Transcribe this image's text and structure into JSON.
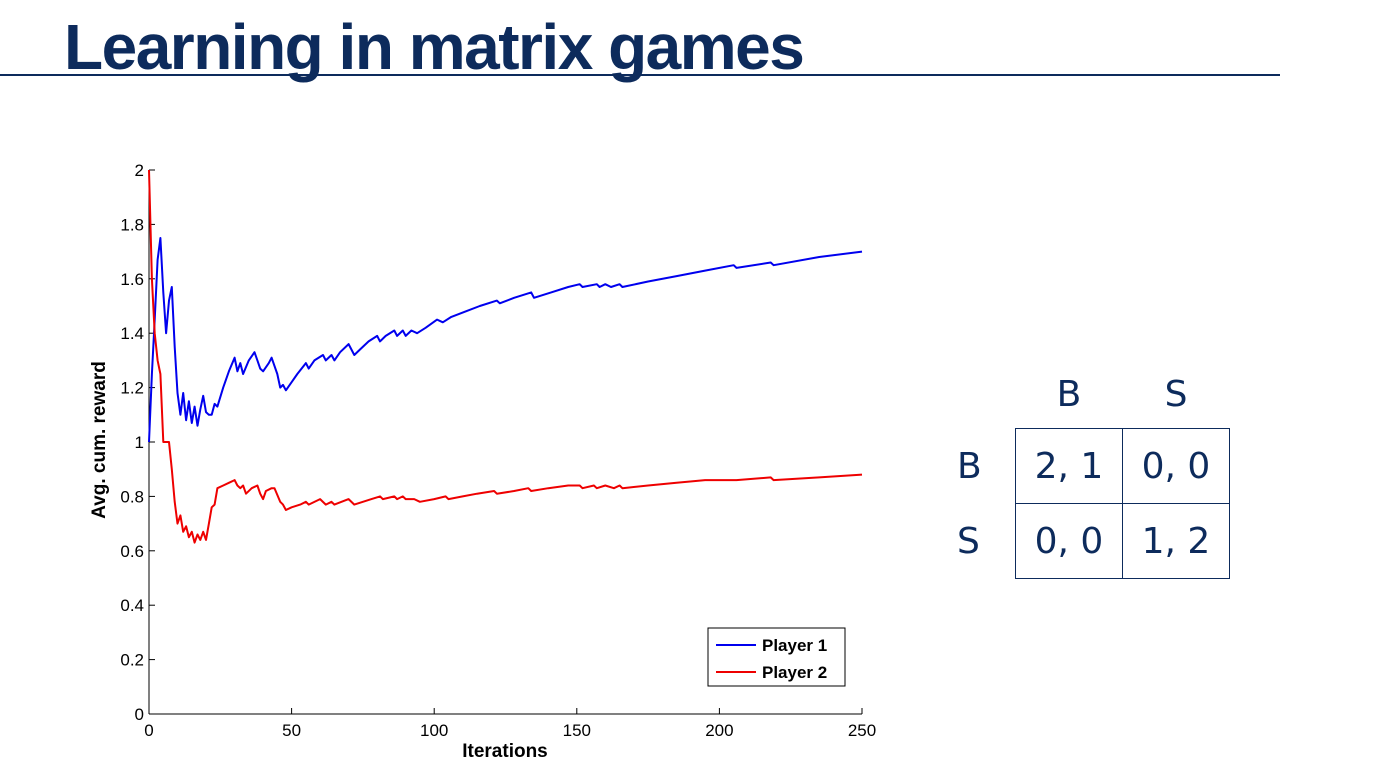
{
  "slide": {
    "title": "Learning in matrix games"
  },
  "chart_data": {
    "type": "line",
    "xlabel": "Iterations",
    "ylabel": "Avg. cum. reward",
    "xlim": [
      0,
      250
    ],
    "ylim": [
      0,
      2
    ],
    "xticks": [
      0,
      50,
      100,
      150,
      200,
      250
    ],
    "yticks": [
      0,
      0.2,
      0.4,
      0.6,
      0.8,
      1,
      1.2,
      1.4,
      1.6,
      1.8,
      2
    ],
    "ytick_labels": [
      "0",
      "0.2",
      "0.4",
      "0.6",
      "0.8",
      "1",
      "1.2",
      "1.4",
      "1.6",
      "1.8",
      "2"
    ],
    "grid": false,
    "legend_position": "bottom-right",
    "series": [
      {
        "name": "Player 1",
        "color": "#0000ee",
        "points": [
          [
            0,
            1.0
          ],
          [
            1,
            1.25
          ],
          [
            2,
            1.45
          ],
          [
            3,
            1.67
          ],
          [
            4,
            1.75
          ],
          [
            5,
            1.55
          ],
          [
            6,
            1.4
          ],
          [
            7,
            1.52
          ],
          [
            8,
            1.57
          ],
          [
            9,
            1.35
          ],
          [
            10,
            1.18
          ],
          [
            11,
            1.1
          ],
          [
            12,
            1.18
          ],
          [
            13,
            1.08
          ],
          [
            14,
            1.15
          ],
          [
            15,
            1.07
          ],
          [
            16,
            1.13
          ],
          [
            17,
            1.06
          ],
          [
            18,
            1.12
          ],
          [
            19,
            1.17
          ],
          [
            20,
            1.11
          ],
          [
            21,
            1.1
          ],
          [
            22,
            1.1
          ],
          [
            23,
            1.14
          ],
          [
            24,
            1.13
          ],
          [
            26,
            1.2
          ],
          [
            28,
            1.26
          ],
          [
            30,
            1.31
          ],
          [
            31,
            1.26
          ],
          [
            32,
            1.29
          ],
          [
            33,
            1.25
          ],
          [
            35,
            1.3
          ],
          [
            37,
            1.33
          ],
          [
            38,
            1.3
          ],
          [
            39,
            1.27
          ],
          [
            40,
            1.26
          ],
          [
            42,
            1.29
          ],
          [
            43,
            1.31
          ],
          [
            45,
            1.25
          ],
          [
            46,
            1.2
          ],
          [
            47,
            1.21
          ],
          [
            48,
            1.19
          ],
          [
            50,
            1.22
          ],
          [
            52,
            1.25
          ],
          [
            55,
            1.29
          ],
          [
            56,
            1.27
          ],
          [
            58,
            1.3
          ],
          [
            61,
            1.32
          ],
          [
            62,
            1.3
          ],
          [
            64,
            1.32
          ],
          [
            65,
            1.3
          ],
          [
            67,
            1.33
          ],
          [
            70,
            1.36
          ],
          [
            72,
            1.32
          ],
          [
            74,
            1.34
          ],
          [
            77,
            1.37
          ],
          [
            80,
            1.39
          ],
          [
            81,
            1.37
          ],
          [
            83,
            1.39
          ],
          [
            86,
            1.41
          ],
          [
            87,
            1.39
          ],
          [
            89,
            1.41
          ],
          [
            90,
            1.39
          ],
          [
            92,
            1.41
          ],
          [
            94,
            1.4
          ],
          [
            97,
            1.42
          ],
          [
            101,
            1.45
          ],
          [
            103,
            1.44
          ],
          [
            106,
            1.46
          ],
          [
            111,
            1.48
          ],
          [
            116,
            1.5
          ],
          [
            122,
            1.52
          ],
          [
            123,
            1.51
          ],
          [
            128,
            1.53
          ],
          [
            134,
            1.55
          ],
          [
            135,
            1.53
          ],
          [
            141,
            1.55
          ],
          [
            147,
            1.57
          ],
          [
            151,
            1.58
          ],
          [
            152,
            1.57
          ],
          [
            157,
            1.58
          ],
          [
            158,
            1.57
          ],
          [
            160,
            1.58
          ],
          [
            162,
            1.57
          ],
          [
            165,
            1.58
          ],
          [
            166,
            1.57
          ],
          [
            175,
            1.59
          ],
          [
            185,
            1.61
          ],
          [
            195,
            1.63
          ],
          [
            205,
            1.65
          ],
          [
            206,
            1.64
          ],
          [
            218,
            1.66
          ],
          [
            219,
            1.65
          ],
          [
            235,
            1.68
          ],
          [
            250,
            1.7
          ]
        ]
      },
      {
        "name": "Player 2",
        "color": "#ee0000",
        "points": [
          [
            0,
            2.0
          ],
          [
            1,
            1.6
          ],
          [
            2,
            1.4
          ],
          [
            3,
            1.3
          ],
          [
            4,
            1.25
          ],
          [
            5,
            1.0
          ],
          [
            6,
            1.0
          ],
          [
            7,
            1.0
          ],
          [
            8,
            0.9
          ],
          [
            9,
            0.78
          ],
          [
            10,
            0.7
          ],
          [
            11,
            0.73
          ],
          [
            12,
            0.67
          ],
          [
            13,
            0.69
          ],
          [
            14,
            0.65
          ],
          [
            15,
            0.67
          ],
          [
            16,
            0.63
          ],
          [
            17,
            0.66
          ],
          [
            18,
            0.64
          ],
          [
            19,
            0.67
          ],
          [
            20,
            0.64
          ],
          [
            21,
            0.7
          ],
          [
            22,
            0.76
          ],
          [
            23,
            0.77
          ],
          [
            24,
            0.83
          ],
          [
            26,
            0.84
          ],
          [
            28,
            0.85
          ],
          [
            30,
            0.86
          ],
          [
            31,
            0.84
          ],
          [
            32,
            0.83
          ],
          [
            33,
            0.84
          ],
          [
            34,
            0.81
          ],
          [
            36,
            0.83
          ],
          [
            38,
            0.84
          ],
          [
            39,
            0.81
          ],
          [
            40,
            0.79
          ],
          [
            41,
            0.82
          ],
          [
            43,
            0.83
          ],
          [
            44,
            0.83
          ],
          [
            46,
            0.78
          ],
          [
            47,
            0.77
          ],
          [
            48,
            0.75
          ],
          [
            50,
            0.76
          ],
          [
            53,
            0.77
          ],
          [
            55,
            0.78
          ],
          [
            56,
            0.77
          ],
          [
            60,
            0.79
          ],
          [
            62,
            0.77
          ],
          [
            64,
            0.78
          ],
          [
            65,
            0.77
          ],
          [
            70,
            0.79
          ],
          [
            72,
            0.77
          ],
          [
            75,
            0.78
          ],
          [
            78,
            0.79
          ],
          [
            81,
            0.8
          ],
          [
            82,
            0.79
          ],
          [
            86,
            0.8
          ],
          [
            87,
            0.79
          ],
          [
            89,
            0.8
          ],
          [
            90,
            0.79
          ],
          [
            93,
            0.79
          ],
          [
            95,
            0.78
          ],
          [
            100,
            0.79
          ],
          [
            104,
            0.8
          ],
          [
            105,
            0.79
          ],
          [
            110,
            0.8
          ],
          [
            115,
            0.81
          ],
          [
            121,
            0.82
          ],
          [
            122,
            0.81
          ],
          [
            128,
            0.82
          ],
          [
            133,
            0.83
          ],
          [
            134,
            0.82
          ],
          [
            140,
            0.83
          ],
          [
            147,
            0.84
          ],
          [
            151,
            0.84
          ],
          [
            152,
            0.83
          ],
          [
            156,
            0.84
          ],
          [
            157,
            0.83
          ],
          [
            160,
            0.84
          ],
          [
            163,
            0.83
          ],
          [
            165,
            0.84
          ],
          [
            166,
            0.83
          ],
          [
            175,
            0.84
          ],
          [
            185,
            0.85
          ],
          [
            195,
            0.86
          ],
          [
            205,
            0.86
          ],
          [
            206,
            0.86
          ],
          [
            218,
            0.87
          ],
          [
            219,
            0.86
          ],
          [
            235,
            0.87
          ],
          [
            250,
            0.88
          ]
        ]
      }
    ]
  },
  "payoff_table": {
    "col_headers": [
      "B",
      "S"
    ],
    "rows": [
      {
        "label": "B",
        "cells": [
          "2, 1",
          "0, 0"
        ]
      },
      {
        "label": "S",
        "cells": [
          "0, 0",
          "1, 2"
        ]
      }
    ]
  }
}
